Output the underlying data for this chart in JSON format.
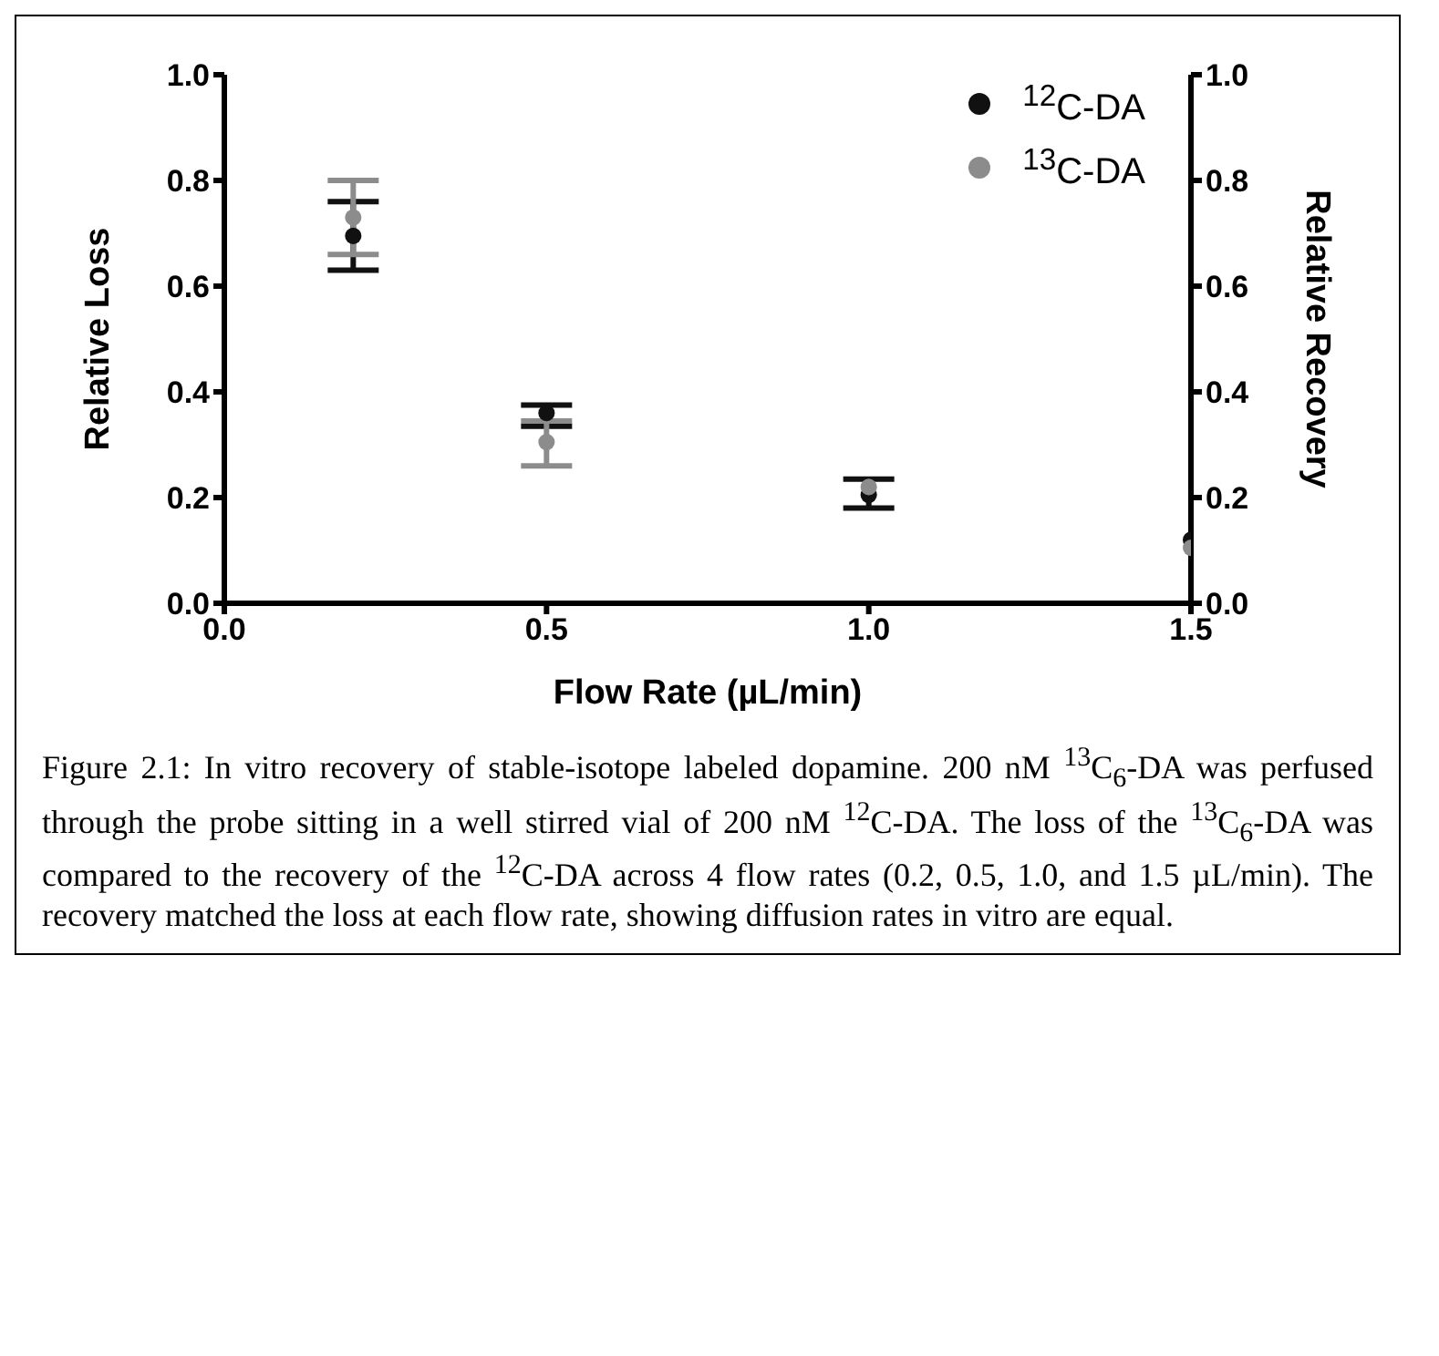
{
  "chart_data": {
    "type": "scatter",
    "x": [
      0.2,
      0.5,
      1.0,
      1.5
    ],
    "xlabel": "Flow Rate (µL/min)",
    "ylabel": "Relative Loss",
    "y2label": "Relative Recovery",
    "xlim": [
      0,
      1.5
    ],
    "xticks": [
      {
        "value": 0,
        "label": "0.0"
      },
      {
        "value": 0.5,
        "label": "0.5"
      },
      {
        "value": 1,
        "label": "1.0"
      },
      {
        "value": 1.5,
        "label": "1.5"
      }
    ],
    "ylim": [
      0,
      1
    ],
    "yticks": [
      {
        "value": 0,
        "label": "0.0"
      },
      {
        "value": 0.2,
        "label": "0.2"
      },
      {
        "value": 0.4,
        "label": "0.4"
      },
      {
        "value": 0.6,
        "label": "0.6"
      },
      {
        "value": 0.8,
        "label": "0.8"
      },
      {
        "value": 1,
        "label": "1.0"
      }
    ],
    "y2lim": [
      0,
      1
    ],
    "y2ticks": [
      {
        "value": 0,
        "label": "0.0"
      },
      {
        "value": 0.2,
        "label": "0.2"
      },
      {
        "value": 0.4,
        "label": "0.4"
      },
      {
        "value": 0.6,
        "label": "0.6"
      },
      {
        "value": 0.8,
        "label": "0.8"
      },
      {
        "value": 1,
        "label": "1.0"
      }
    ],
    "series": [
      {
        "name": "$^{12}$C-DA",
        "color": "#111111",
        "values": [
          0.695,
          0.36,
          0.205,
          0.12
        ],
        "errors": [
          [
            0.63,
            0.76
          ],
          [
            0.335,
            0.375
          ],
          [
            0.18,
            0.235
          ],
          null
        ]
      },
      {
        "name": "$^{13}$C-DA",
        "color": "#8c8c8c",
        "values": [
          0.73,
          0.305,
          0.22,
          0.105
        ],
        "errors": [
          [
            0.66,
            0.8
          ],
          [
            0.26,
            0.345
          ],
          null,
          null
        ]
      }
    ],
    "marker": "circle",
    "legend": "top right",
    "grid": false,
    "annotations": [
      "Figure 2.1: In vitro recovery of stable-isotope labeled dopamine. 200 nM $^{13}$C$_{6}$-DA was perfused through the probe sitting in a well stirred vial of 200 nM $^{12}$C-DA. The loss of the $^{13}$C$_{6}$-DA was compared to the recovery of the $^{12}$C-DA across 4 flow rates (0.2, 0.5, 1.0, and 1.5 µL/min). The recovery matched the loss at each flow rate, showing diffusion rates in vitro are equal."
    ]
  }
}
